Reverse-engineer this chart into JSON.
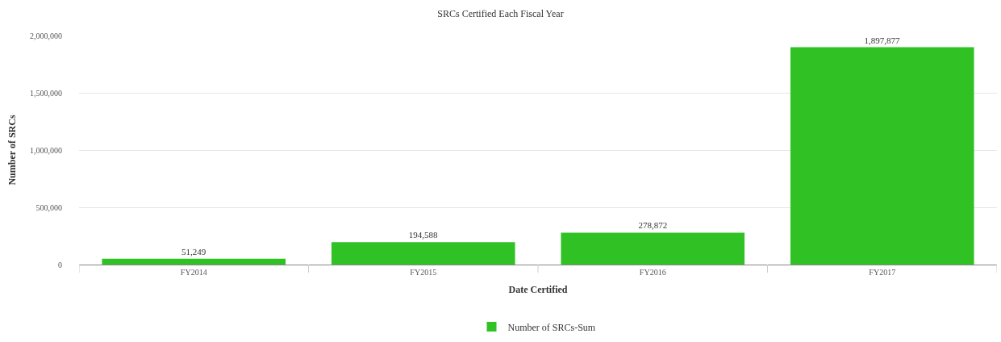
{
  "chart_data": {
    "type": "bar",
    "title": "SRCs Certified Each Fiscal Year",
    "xlabel": "Date Certified",
    "ylabel": "Number of SRCs",
    "categories": [
      "FY2014",
      "FY2015",
      "FY2016",
      "FY2017"
    ],
    "series": [
      {
        "name": "Number of SRCs-Sum",
        "color": "#30c125",
        "values": [
          51249,
          194588,
          278872,
          1897877
        ],
        "value_labels": [
          "51,249",
          "194,588",
          "278,872",
          "1,897,877"
        ]
      }
    ],
    "ylim": [
      0,
      2000000
    ],
    "yticks": [
      {
        "value": 0,
        "label": "0"
      },
      {
        "value": 500000,
        "label": "500,000"
      },
      {
        "value": 1000000,
        "label": "1,000,000"
      },
      {
        "value": 1500000,
        "label": "1,500,000"
      },
      {
        "value": 2000000,
        "label": "2,000,000"
      }
    ],
    "grid": "y",
    "legend": "bottom"
  }
}
